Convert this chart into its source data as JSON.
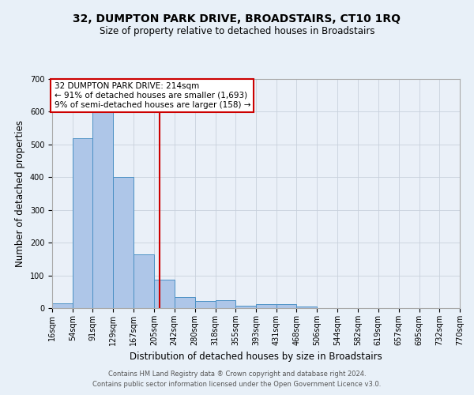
{
  "title": "32, DUMPTON PARK DRIVE, BROADSTAIRS, CT10 1RQ",
  "subtitle": "Size of property relative to detached houses in Broadstairs",
  "xlabel": "Distribution of detached houses by size in Broadstairs",
  "ylabel": "Number of detached properties",
  "footnote1": "Contains HM Land Registry data ® Crown copyright and database right 2024.",
  "footnote2": "Contains public sector information licensed under the Open Government Licence v3.0.",
  "bin_labels": [
    "16sqm",
    "54sqm",
    "91sqm",
    "129sqm",
    "167sqm",
    "205sqm",
    "242sqm",
    "280sqm",
    "318sqm",
    "355sqm",
    "393sqm",
    "431sqm",
    "468sqm",
    "506sqm",
    "544sqm",
    "582sqm",
    "619sqm",
    "657sqm",
    "695sqm",
    "732sqm",
    "770sqm"
  ],
  "bar_heights": [
    15,
    520,
    600,
    400,
    163,
    88,
    35,
    22,
    23,
    8,
    13,
    13,
    6,
    0,
    0,
    0,
    0,
    0,
    0,
    0
  ],
  "bin_edges": [
    16,
    54,
    91,
    129,
    167,
    205,
    242,
    280,
    318,
    355,
    393,
    431,
    468,
    506,
    544,
    582,
    619,
    657,
    695,
    732,
    770
  ],
  "bar_color": "#aec6e8",
  "bar_edge_color": "#4a90c4",
  "property_size": 214,
  "vline_color": "#cc0000",
  "annotation_line1": "32 DUMPTON PARK DRIVE: 214sqm",
  "annotation_line2": "← 91% of detached houses are smaller (1,693)",
  "annotation_line3": "9% of semi-detached houses are larger (158) →",
  "annotation_box_color": "#ffffff",
  "annotation_box_edge": "#cc0000",
  "ylim": [
    0,
    700
  ],
  "yticks": [
    0,
    100,
    200,
    300,
    400,
    500,
    600,
    700
  ],
  "background_color": "#e8f0f8",
  "plot_bg_color": "#eaf0f8",
  "grid_color": "#c8d0dc",
  "title_fontsize": 10,
  "subtitle_fontsize": 8.5,
  "label_fontsize": 8.5,
  "tick_fontsize": 7,
  "annotation_fontsize": 7.5,
  "footnote_fontsize": 6
}
